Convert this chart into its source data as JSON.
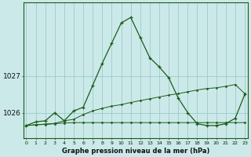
{
  "title": "Graphe pression niveau de la mer (hPa)",
  "background_color": "#cce9e9",
  "grid_color": "#99cccc",
  "line_color": "#1a5c1a",
  "hours": [
    0,
    1,
    2,
    3,
    4,
    5,
    6,
    7,
    8,
    9,
    10,
    11,
    12,
    13,
    14,
    15,
    16,
    17,
    18,
    19,
    20,
    21,
    22,
    23
  ],
  "series1": [
    1025.65,
    1025.75,
    1025.78,
    1026.0,
    1025.78,
    1026.05,
    1026.15,
    1026.75,
    1027.35,
    1027.9,
    1028.45,
    1028.6,
    1028.05,
    1027.5,
    1027.25,
    1026.95,
    1026.4,
    1026.0,
    1025.7,
    1025.65,
    1025.65,
    1025.7,
    1025.85,
    1026.5
  ],
  "series2": [
    1025.65,
    1025.67,
    1025.69,
    1025.71,
    1025.78,
    1025.82,
    1025.95,
    1026.05,
    1026.12,
    1026.18,
    1026.22,
    1026.28,
    1026.33,
    1026.38,
    1026.43,
    1026.48,
    1026.52,
    1026.57,
    1026.62,
    1026.66,
    1026.68,
    1026.72,
    1026.77,
    1026.52
  ],
  "series3": [
    1025.65,
    1025.67,
    1025.68,
    1025.7,
    1025.72,
    1025.73,
    1025.73,
    1025.73,
    1025.73,
    1025.73,
    1025.73,
    1025.73,
    1025.73,
    1025.73,
    1025.73,
    1025.73,
    1025.73,
    1025.73,
    1025.73,
    1025.73,
    1025.73,
    1025.73,
    1025.73,
    1025.73
  ],
  "yticks": [
    1026,
    1027
  ],
  "ylim": [
    1025.3,
    1029.0
  ],
  "xlim": [
    -0.3,
    23.3
  ]
}
